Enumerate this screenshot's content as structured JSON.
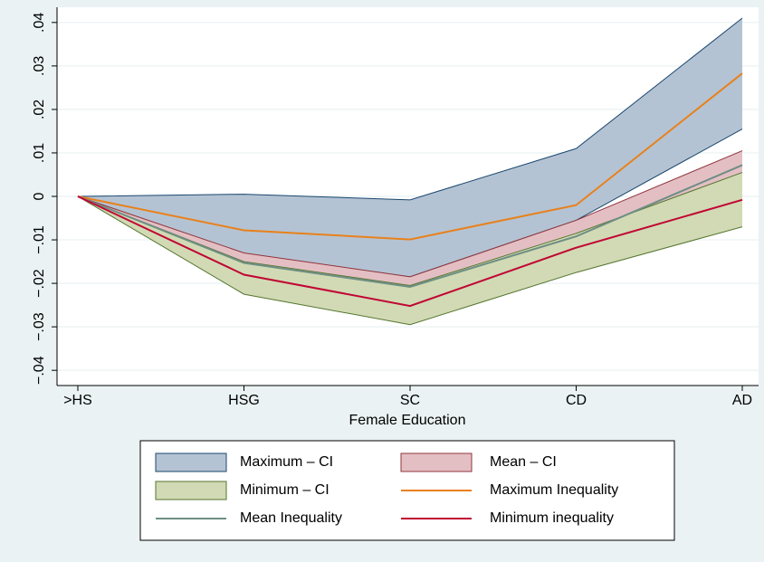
{
  "chart_data": {
    "type": "band-line",
    "x_label": "Female Education",
    "categories": [
      ">HS",
      "HSG",
      "SC",
      "CD",
      "AD"
    ],
    "ylim": [
      -0.0435,
      0.0435
    ],
    "yticks": [
      {
        "value": -0.04,
        "label": "−.04"
      },
      {
        "value": -0.03,
        "label": "−.03"
      },
      {
        "value": -0.02,
        "label": "−.02"
      },
      {
        "value": -0.01,
        "label": "−.01"
      },
      0,
      {
        "value": 0.01,
        "label": ".01"
      },
      {
        "value": 0.02,
        "label": ".02"
      },
      {
        "value": 0.03,
        "label": ".03"
      },
      {
        "value": 0.04,
        "label": ".04"
      }
    ],
    "grid": true,
    "series": [
      {
        "name": "Maximum – CI",
        "type": "band",
        "color": "#b4c3d3",
        "edge_color": "#1a476f",
        "lower": [
          0,
          -0.0132,
          -0.0185,
          -0.0055,
          0.0155
        ],
        "upper": [
          0,
          0.0005,
          -0.0008,
          0.011,
          0.041
        ]
      },
      {
        "name": "Mean – CI",
        "type": "band",
        "color": "#e3bfc4",
        "edge_color": "#90353b",
        "lower": [
          0,
          -0.0155,
          -0.021,
          -0.009,
          0.005
        ],
        "upper": [
          0,
          -0.013,
          -0.0185,
          -0.0055,
          0.0105
        ]
      },
      {
        "name": "Minimum – CI",
        "type": "band",
        "color": "#d1dab4",
        "edge_color": "#55752f",
        "lower": [
          0,
          -0.0225,
          -0.0295,
          -0.0175,
          -0.007
        ],
        "upper": [
          0,
          -0.015,
          -0.0205,
          -0.0085,
          0.0055
        ]
      },
      {
        "name": "Maximum Inequality",
        "type": "line",
        "color": "#e8811b",
        "values": [
          0,
          -0.0078,
          -0.0099,
          -0.002,
          0.0283
        ]
      },
      {
        "name": "Mean Inequality",
        "type": "line",
        "color": "#6e8e84",
        "values": [
          0,
          -0.0153,
          -0.0208,
          -0.0092,
          0.0072
        ]
      },
      {
        "name": "Minimum inequality",
        "type": "line",
        "color": "#c10534",
        "values": [
          0,
          -0.018,
          -0.0252,
          -0.0118,
          -0.0008
        ]
      }
    ]
  }
}
